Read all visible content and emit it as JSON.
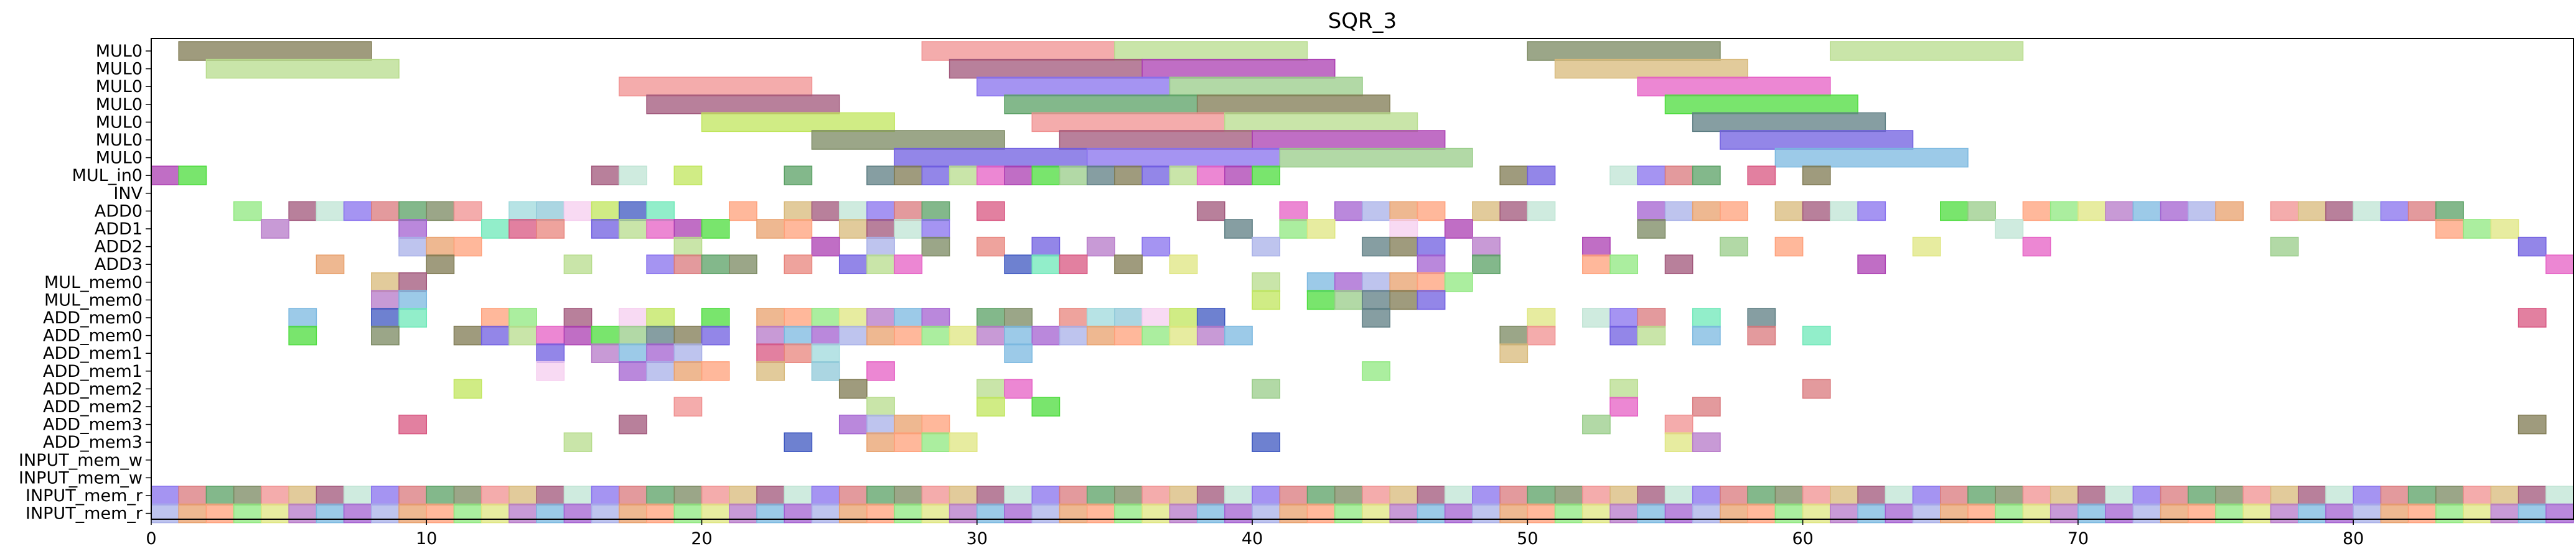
{
  "chart_data": {
    "type": "gantt",
    "title": "SQR_3",
    "xlabel": "",
    "ylabel": "",
    "xlim": [
      0,
      88
    ],
    "xticks": [
      0,
      10,
      20,
      30,
      40,
      50,
      60,
      70,
      80
    ],
    "grid": false,
    "rows": [
      "MUL0",
      "MUL0",
      "MUL0",
      "MUL0",
      "MUL0",
      "MUL0",
      "MUL0",
      "MUL_in0",
      "INV",
      "ADD0",
      "ADD1",
      "ADD2",
      "ADD3",
      "MUL_mem0",
      "MUL_mem0",
      "ADD_mem0",
      "ADD_mem0",
      "ADD_mem1",
      "ADD_mem1",
      "ADD_mem2",
      "ADD_mem2",
      "ADD_mem3",
      "ADD_mem3",
      "INPUT_mem_w",
      "INPUT_mem_w",
      "INPUT_mem_r",
      "INPUT_mem_r"
    ],
    "palette": [
      "#e8847c",
      "#7f7a52",
      "#8fe87f",
      "#d8b97a",
      "#9fd9dc",
      "#6f5de0",
      "#dfe680",
      "#a0567a",
      "#8fc8d8",
      "#b7dc8c",
      "#b678c8",
      "#bfe4d4",
      "#f5cdef",
      "#e55fc4",
      "#7bb8e0",
      "#8770ee",
      "#c0e65c",
      "#ab3eb2",
      "#a360d0",
      "#d9787c",
      "#3d57c0",
      "#4cdc3c",
      "#a8b0e8",
      "#5aa064",
      "#6ee8b8",
      "#98cc88",
      "#e8a06c",
      "#7a8860",
      "#d85580",
      "#5d7d83",
      "#ffa07a",
      "#f09090"
    ],
    "series": [
      {
        "name": "MUL0",
        "bars": [
          [
            1,
            7
          ],
          [
            28,
            7
          ],
          [
            35,
            7
          ],
          [
            50,
            7
          ],
          [
            61,
            7
          ]
        ]
      },
      {
        "name": "MUL0",
        "bars": [
          [
            2,
            7
          ],
          [
            29,
            7
          ],
          [
            36,
            7
          ],
          [
            51,
            7
          ]
        ]
      },
      {
        "name": "MUL0",
        "bars": [
          [
            17,
            7
          ],
          [
            30,
            7
          ],
          [
            37,
            7
          ],
          [
            54,
            7
          ]
        ]
      },
      {
        "name": "MUL0",
        "bars": [
          [
            18,
            7
          ],
          [
            31,
            7
          ],
          [
            38,
            7
          ],
          [
            55,
            7
          ]
        ]
      },
      {
        "name": "MUL0",
        "bars": [
          [
            20,
            7
          ],
          [
            32,
            7
          ],
          [
            39,
            7
          ],
          [
            56,
            7
          ]
        ]
      },
      {
        "name": "MUL0",
        "bars": [
          [
            24,
            7
          ],
          [
            33,
            7
          ],
          [
            40,
            7
          ],
          [
            57,
            7
          ]
        ]
      },
      {
        "name": "MUL0",
        "bars": [
          [
            27,
            7
          ],
          [
            34,
            7
          ],
          [
            41,
            7
          ],
          [
            59,
            7
          ]
        ]
      },
      {
        "name": "MUL_in0",
        "starts": [
          0,
          1,
          16,
          17,
          19,
          23,
          26,
          27,
          28,
          29,
          30,
          31,
          32,
          33,
          34,
          35,
          36,
          37,
          38,
          39,
          40,
          49,
          50,
          53,
          54,
          55,
          56,
          58,
          60
        ]
      },
      {
        "name": "INV",
        "starts": []
      },
      {
        "name": "ADD0",
        "starts": [
          3,
          5,
          6,
          7,
          8,
          9,
          10,
          11,
          13,
          14,
          15,
          16,
          17,
          18,
          21,
          23,
          24,
          25,
          26,
          27,
          28,
          30,
          38,
          41,
          43,
          44,
          45,
          46,
          48,
          49,
          50,
          54,
          55,
          56,
          57,
          59,
          60,
          61,
          62,
          65,
          66,
          68,
          69,
          70,
          71,
          72,
          73,
          74,
          75,
          77,
          78,
          79,
          80,
          81,
          82,
          83
        ]
      },
      {
        "name": "ADD1",
        "starts": [
          4,
          9,
          12,
          13,
          14,
          16,
          17,
          18,
          19,
          20,
          22,
          23,
          25,
          26,
          27,
          28,
          39,
          41,
          42,
          45,
          47,
          54,
          67,
          83,
          84,
          85
        ]
      },
      {
        "name": "ADD2",
        "starts": [
          9,
          10,
          11,
          19,
          24,
          26,
          28,
          30,
          32,
          34,
          36,
          40,
          44,
          45,
          46,
          48,
          52,
          57,
          59,
          64,
          68,
          77,
          86
        ]
      },
      {
        "name": "ADD3",
        "starts": [
          6,
          10,
          15,
          18,
          19,
          20,
          21,
          23,
          25,
          26,
          27,
          31,
          32,
          33,
          35,
          37,
          46,
          48,
          52,
          53,
          55,
          62,
          87
        ]
      },
      {
        "name": "MUL_mem0",
        "starts": [
          8,
          9,
          40,
          42,
          43,
          44,
          45,
          46,
          47
        ]
      },
      {
        "name": "MUL_mem0",
        "starts": [
          8,
          9,
          40,
          42,
          43,
          44,
          45,
          46
        ]
      },
      {
        "name": "ADD_mem0",
        "starts": [
          5,
          8,
          9,
          12,
          13,
          15,
          17,
          18,
          20,
          22,
          23,
          24,
          25,
          26,
          27,
          28,
          30,
          31,
          33,
          34,
          35,
          36,
          37,
          38,
          44,
          50,
          52,
          53,
          54,
          56,
          58,
          86
        ]
      },
      {
        "name": "ADD_mem0",
        "starts": [
          5,
          8,
          11,
          12,
          13,
          14,
          15,
          16,
          17,
          18,
          19,
          20,
          22,
          23,
          24,
          25,
          26,
          27,
          28,
          29,
          30,
          31,
          32,
          33,
          34,
          35,
          36,
          37,
          38,
          39,
          49,
          50,
          53,
          54,
          56,
          58,
          60
        ]
      },
      {
        "name": "ADD_mem1",
        "starts": [
          14,
          16,
          17,
          18,
          19,
          22,
          23,
          24,
          31,
          49
        ]
      },
      {
        "name": "ADD_mem1",
        "starts": [
          14,
          17,
          18,
          19,
          20,
          22,
          24,
          26,
          44
        ]
      },
      {
        "name": "ADD_mem2",
        "starts": [
          11,
          25,
          30,
          31,
          40,
          53,
          60
        ]
      },
      {
        "name": "ADD_mem2",
        "starts": [
          19,
          26,
          30,
          32,
          53,
          56
        ]
      },
      {
        "name": "ADD_mem3",
        "starts": [
          9,
          17,
          25,
          26,
          27,
          28,
          52,
          55,
          86
        ]
      },
      {
        "name": "ADD_mem3",
        "starts": [
          15,
          23,
          26,
          27,
          28,
          29,
          40,
          55,
          56
        ]
      },
      {
        "name": "INPUT_mem_w",
        "starts": []
      },
      {
        "name": "INPUT_mem_w",
        "starts": []
      },
      {
        "name": "INPUT_mem_r",
        "starts": [
          0,
          1,
          2,
          3,
          4,
          5,
          6,
          7,
          8,
          9,
          10,
          11,
          12,
          13,
          14,
          15,
          16,
          17,
          18,
          19,
          20,
          21,
          22,
          23,
          24,
          25,
          26,
          27,
          28,
          29,
          30,
          31,
          32,
          33,
          34,
          35,
          36,
          37,
          38,
          39,
          40,
          41,
          42,
          43,
          44,
          45,
          46,
          47,
          48,
          49,
          50,
          51,
          52,
          53,
          54,
          55,
          56,
          57,
          58,
          59,
          60,
          61,
          62,
          63,
          64,
          65,
          66,
          67,
          68,
          69,
          70,
          71,
          72,
          73,
          74,
          75,
          76,
          77,
          78,
          79,
          80,
          81,
          82,
          83,
          84,
          85,
          86,
          87
        ]
      },
      {
        "name": "INPUT_mem_r",
        "starts": [
          0,
          1,
          2,
          3,
          4,
          5,
          6,
          7,
          8,
          9,
          10,
          11,
          12,
          13,
          14,
          15,
          16,
          17,
          18,
          19,
          20,
          21,
          22,
          23,
          24,
          25,
          26,
          27,
          28,
          29,
          30,
          31,
          32,
          33,
          34,
          35,
          36,
          37,
          38,
          39,
          40,
          41,
          42,
          43,
          44,
          45,
          46,
          47,
          48,
          49,
          50,
          51,
          52,
          53,
          54,
          55,
          56,
          57,
          58,
          59,
          60,
          61,
          62,
          63,
          64,
          65,
          66,
          67,
          68,
          69,
          70,
          71,
          72,
          73,
          74,
          75,
          76,
          77,
          78,
          79,
          80,
          81,
          82,
          83,
          84,
          85,
          86,
          87
        ]
      }
    ]
  }
}
